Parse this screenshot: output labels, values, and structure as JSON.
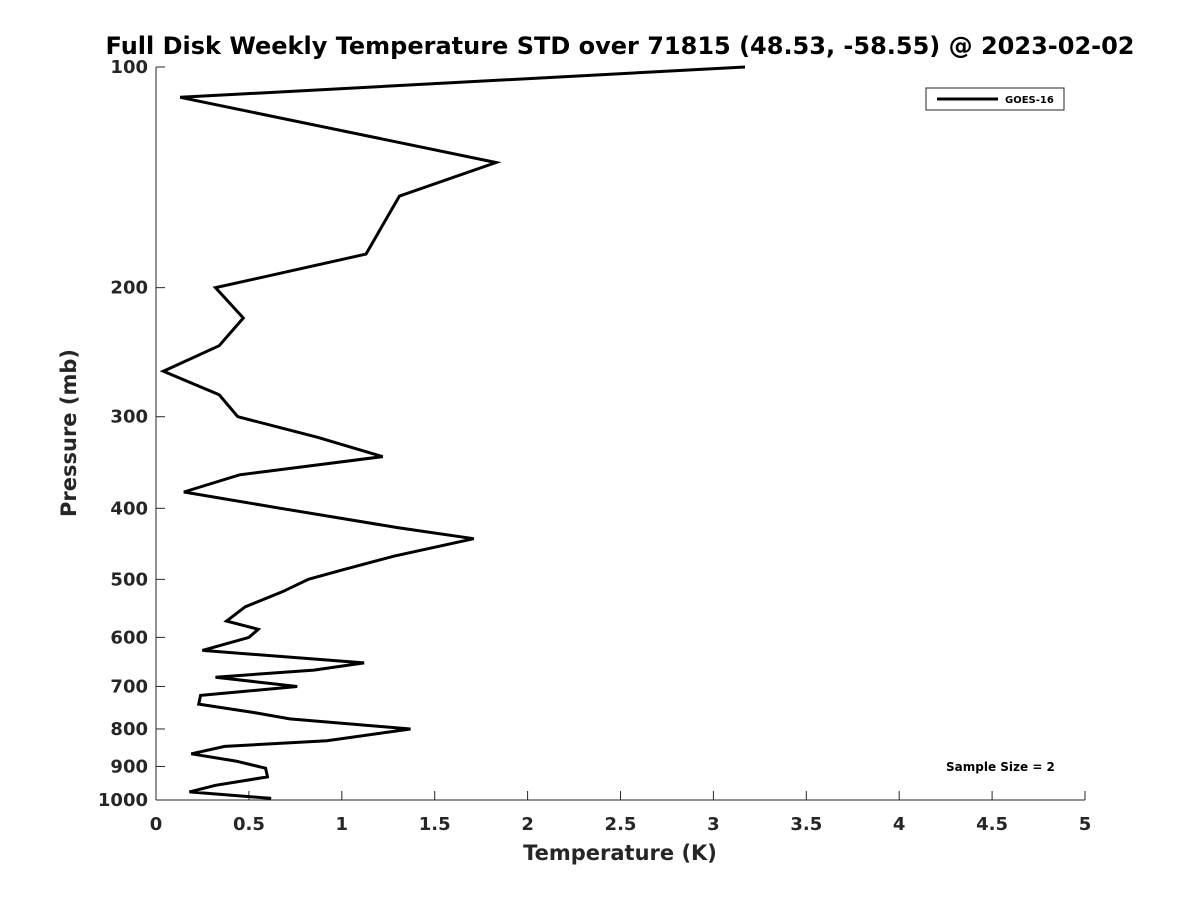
{
  "chart_data": {
    "type": "line",
    "title": "Full Disk Weekly Temperature STD over 71815 (48.53, -58.55) @ 2023-02-02",
    "xlabel": "Temperature (K)",
    "ylabel": "Pressure (mb)",
    "xlim": [
      0,
      5
    ],
    "ylim": [
      100,
      1000
    ],
    "yscale": "log",
    "y_reversed": true,
    "xticks": [
      0,
      0.5,
      1,
      1.5,
      2,
      2.5,
      3,
      3.5,
      4,
      4.5,
      5
    ],
    "xtick_labels": [
      "0",
      "0.5",
      "1",
      "1.5",
      "2",
      "2.5",
      "3",
      "3.5",
      "4",
      "4.5",
      "5"
    ],
    "yticks": [
      100,
      200,
      300,
      400,
      500,
      600,
      700,
      800,
      900,
      1000
    ],
    "ytick_labels": [
      "100",
      "200",
      "300",
      "400",
      "500",
      "600",
      "700",
      "800",
      "900",
      "1000"
    ],
    "grid": false,
    "legend_position": "top-right",
    "color": "#000000",
    "series": [
      {
        "name": "GOES-16",
        "x": [
          3.17,
          0.13,
          1.83,
          1.31,
          1.13,
          0.32,
          0.47,
          0.34,
          0.04,
          0.34,
          0.44,
          0.87,
          1.22,
          0.45,
          0.15,
          0.67,
          1.3,
          1.71,
          1.28,
          1.01,
          0.82,
          0.68,
          0.48,
          0.38,
          0.55,
          0.5,
          0.25,
          1.12,
          0.85,
          0.32,
          0.76,
          0.24,
          0.23,
          0.53,
          0.72,
          1.37,
          0.92,
          0.37,
          0.19,
          0.43,
          0.59,
          0.6,
          0.32,
          0.18,
          0.62
        ],
        "y": [
          100,
          110,
          135,
          150,
          180,
          200,
          220,
          240,
          260,
          280,
          300,
          320,
          340,
          360,
          380,
          400,
          425,
          440,
          465,
          485,
          500,
          520,
          545,
          570,
          585,
          600,
          625,
          650,
          665,
          680,
          700,
          720,
          740,
          760,
          775,
          800,
          830,
          845,
          865,
          885,
          905,
          930,
          955,
          975,
          995
        ]
      }
    ],
    "annotation": "Sample Size = 2"
  }
}
